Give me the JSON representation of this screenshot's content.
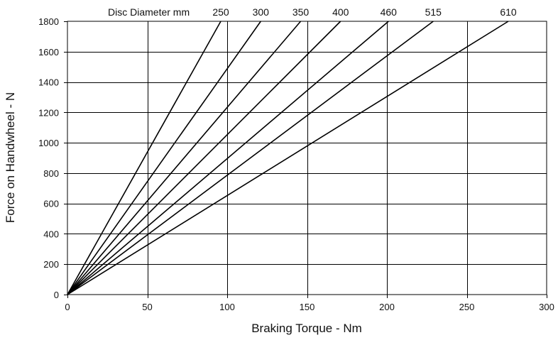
{
  "chart_data": {
    "type": "line",
    "title": "",
    "xlabel": "Braking Torque - Nm",
    "ylabel": "Force on Handwheel - N",
    "xlim": [
      0,
      300
    ],
    "ylim": [
      0,
      1800
    ],
    "x_ticks": [
      0,
      50,
      100,
      150,
      200,
      250,
      300
    ],
    "y_ticks": [
      0,
      200,
      400,
      600,
      800,
      1000,
      1200,
      1400,
      1600,
      1800
    ],
    "grid": true,
    "legend_title": "Disc Diameter mm",
    "series": [
      {
        "name": "250",
        "points": [
          [
            0,
            0
          ],
          [
            96,
            1800
          ]
        ]
      },
      {
        "name": "300",
        "points": [
          [
            0,
            0
          ],
          [
            121,
            1800
          ]
        ]
      },
      {
        "name": "350",
        "points": [
          [
            0,
            0
          ],
          [
            146,
            1800
          ]
        ]
      },
      {
        "name": "400",
        "points": [
          [
            0,
            0
          ],
          [
            171,
            1800
          ]
        ]
      },
      {
        "name": "460",
        "points": [
          [
            0,
            0
          ],
          [
            201,
            1800
          ]
        ]
      },
      {
        "name": "515",
        "points": [
          [
            0,
            0
          ],
          [
            229,
            1800
          ]
        ]
      },
      {
        "name": "610",
        "points": [
          [
            0,
            0
          ],
          [
            276,
            1800
          ]
        ]
      }
    ]
  }
}
